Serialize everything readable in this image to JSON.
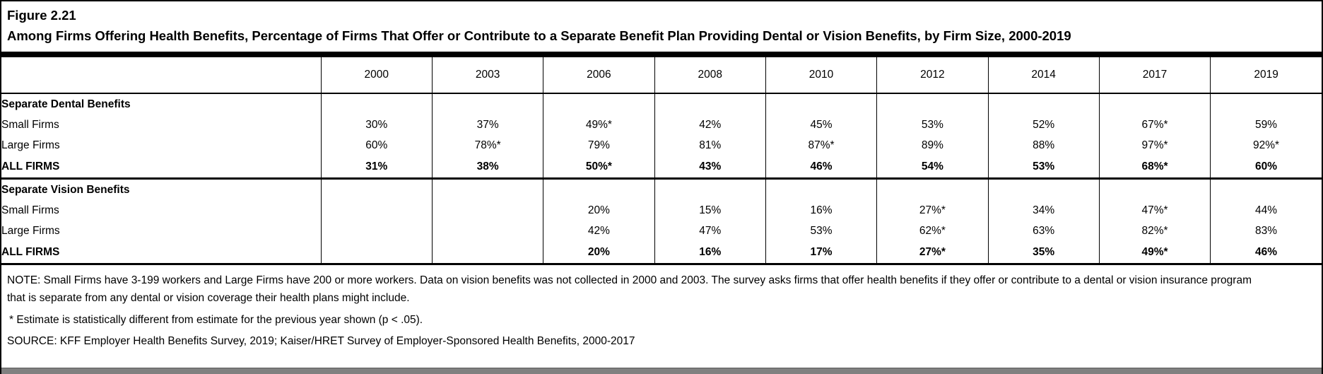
{
  "figure": {
    "label": "Figure 2.21",
    "title": "Among Firms Offering Health Benefits, Percentage of Firms That Offer or Contribute to a Separate Benefit Plan Providing Dental or Vision Benefits, by Firm Size, 2000-2019"
  },
  "chart_data": {
    "type": "table",
    "columns": [
      "2000",
      "2003",
      "2006",
      "2008",
      "2010",
      "2012",
      "2014",
      "2017",
      "2019"
    ],
    "sections": [
      {
        "header": "Separate Dental Benefits",
        "rows": [
          {
            "label": "Small Firms",
            "bold": false,
            "values": [
              "30%",
              "37%",
              "49%*",
              "42%",
              "45%",
              "53%",
              "52%",
              "67%*",
              "59%"
            ]
          },
          {
            "label": "Large Firms",
            "bold": false,
            "values": [
              "60%",
              "78%*",
              "79%",
              "81%",
              "87%*",
              "89%",
              "88%",
              "97%*",
              "92%*"
            ]
          },
          {
            "label": "ALL FIRMS",
            "bold": true,
            "values": [
              "31%",
              "38%",
              "50%*",
              "43%",
              "46%",
              "54%",
              "53%",
              "68%*",
              "60%"
            ]
          }
        ]
      },
      {
        "header": "Separate Vision Benefits",
        "rows": [
          {
            "label": "Small Firms",
            "bold": false,
            "values": [
              "",
              "",
              "20%",
              "15%",
              "16%",
              "27%*",
              "34%",
              "47%*",
              "44%"
            ]
          },
          {
            "label": "Large Firms",
            "bold": false,
            "values": [
              "",
              "",
              "42%",
              "47%",
              "53%",
              "62%*",
              "63%",
              "82%*",
              "83%"
            ]
          },
          {
            "label": "ALL FIRMS",
            "bold": true,
            "values": [
              "",
              "",
              "20%",
              "16%",
              "17%",
              "27%*",
              "35%",
              "49%*",
              "46%"
            ]
          }
        ]
      }
    ],
    "layout": {
      "label_column_width_pct": 24.2,
      "year_column_width_pct": 8.42,
      "grid": "on",
      "value_alignment": "center"
    }
  },
  "notes": {
    "note": "NOTE: Small Firms have 3-199 workers and Large Firms have 200 or more workers. Data on vision benefits was not collected in 2000 and 2003. The survey asks firms that offer health benefits if they offer or contribute to a dental or vision insurance program that is separate from any dental or vision coverage their health plans might include.",
    "footnote": "* Estimate is statistically different from estimate for the previous year shown (p < .05).",
    "source": "SOURCE: KFF Employer Health Benefits Survey, 2019; Kaiser/HRET Survey of Employer-Sponsored Health Benefits, 2000-2017"
  },
  "colors": {
    "text": "#000000",
    "background": "#ffffff",
    "rule": "#000000",
    "bottom_band": "#808080"
  }
}
